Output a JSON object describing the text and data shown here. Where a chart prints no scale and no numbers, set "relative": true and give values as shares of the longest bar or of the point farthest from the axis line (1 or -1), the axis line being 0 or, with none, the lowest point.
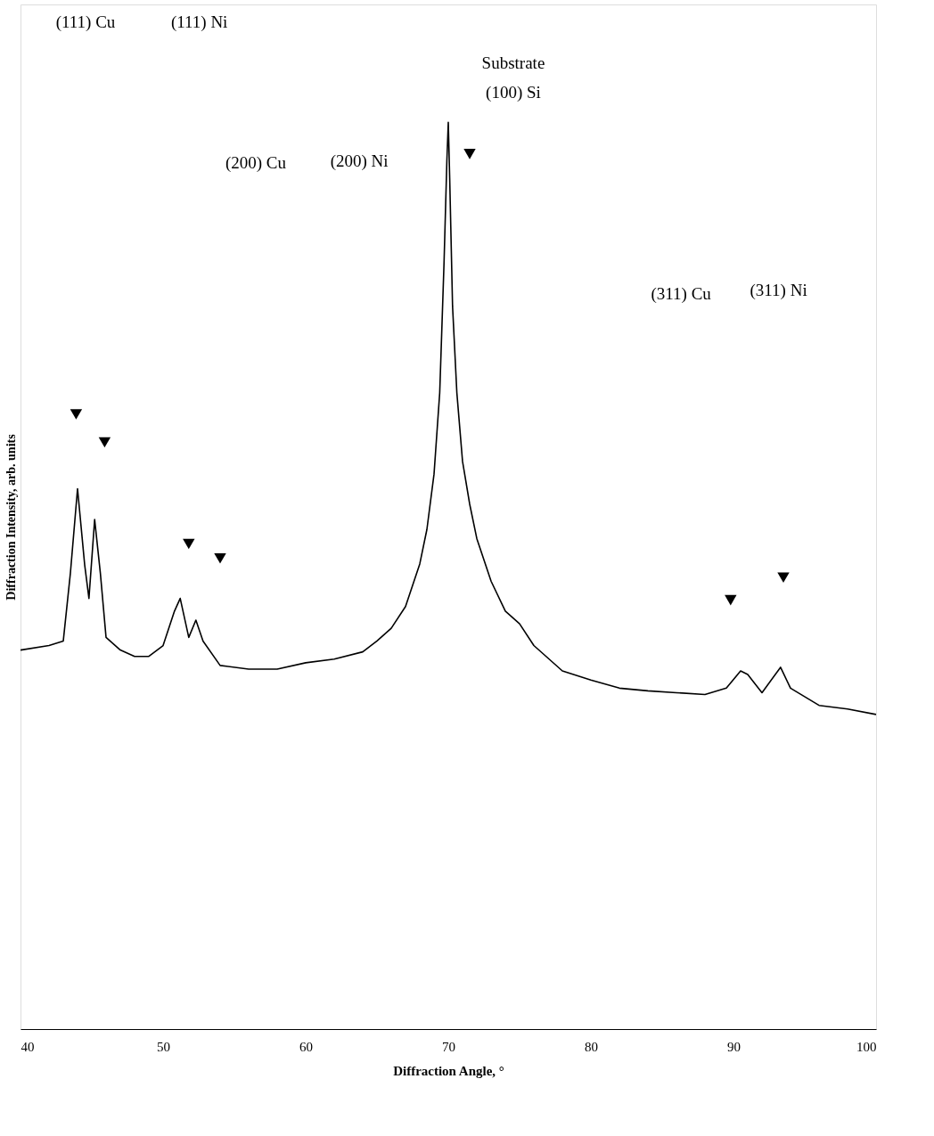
{
  "chart_data": {
    "type": "line",
    "relative": true,
    "xlabel": "Diffraction Angle, °",
    "ylabel": "Diffraction Intensity, arb. units",
    "xlim": [
      40,
      100
    ],
    "xticks": [
      40,
      50,
      60,
      70,
      80,
      90,
      100
    ],
    "grid": false,
    "series": [
      {
        "type": "line",
        "color": "#000000",
        "line_style": "solid",
        "marker": "none",
        "x": [
          40,
          42,
          43,
          43.5,
          44,
          44.5,
          44.8,
          45.2,
          45.6,
          46,
          47,
          48,
          49,
          50,
          50.8,
          51.2,
          51.8,
          52.3,
          52.8,
          54,
          56,
          58,
          60,
          62,
          64,
          65,
          66,
          67,
          68,
          68.5,
          69,
          69.4,
          69.7,
          69.9,
          70,
          70.1,
          70.3,
          70.6,
          71,
          71.5,
          72,
          73,
          74,
          75,
          76,
          77,
          78,
          80,
          82,
          84,
          86,
          88,
          89.5,
          90.5,
          91,
          92,
          93.3,
          94,
          96,
          98,
          100
        ],
        "values": [
          0.418,
          0.423,
          0.428,
          0.503,
          0.596,
          0.512,
          0.475,
          0.562,
          0.503,
          0.432,
          0.418,
          0.411,
          0.411,
          0.423,
          0.461,
          0.475,
          0.432,
          0.451,
          0.428,
          0.401,
          0.397,
          0.397,
          0.404,
          0.408,
          0.416,
          0.428,
          0.442,
          0.466,
          0.513,
          0.551,
          0.612,
          0.702,
          0.844,
          0.957,
          1.0,
          0.938,
          0.797,
          0.702,
          0.626,
          0.579,
          0.541,
          0.494,
          0.461,
          0.447,
          0.423,
          0.409,
          0.395,
          0.385,
          0.376,
          0.373,
          0.371,
          0.369,
          0.376,
          0.395,
          0.391,
          0.371,
          0.399,
          0.376,
          0.357,
          0.353,
          0.347
        ]
      },
      {
        "type": "scatter",
        "color": "#000000",
        "marker": "triangle",
        "x": [
          43.9,
          45.9,
          51.8,
          54.0,
          71.5,
          89.8,
          93.5
        ],
        "values": [
          0.678,
          0.647,
          0.535,
          0.519,
          0.965,
          0.473,
          0.498
        ]
      }
    ],
    "annotations": [
      "(111) Cu",
      "(111) Ni",
      "Substrate",
      "(100) Si",
      "(200) Cu",
      "(200) Ni",
      "(311) Cu",
      "(311) Ni"
    ]
  }
}
